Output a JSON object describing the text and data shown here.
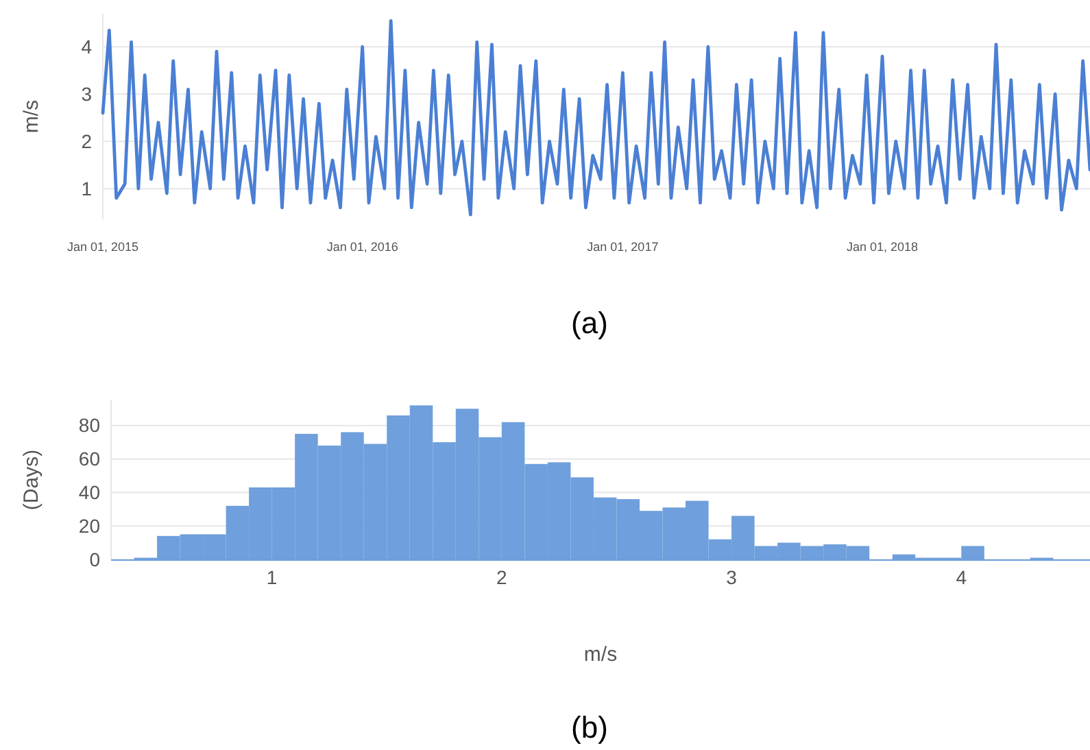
{
  "chart_data": [
    {
      "type": "line",
      "ylabel": "m/s",
      "annotations": [
        "(a)"
      ],
      "grid": "y",
      "xlim": [
        "2015-01-01",
        "2018-10-20"
      ],
      "xticks": [
        {
          "value": "2015-01-01",
          "label": "Jan 01, 2015"
        },
        {
          "value": "2016-01-01",
          "label": "Jan 01, 2016"
        },
        {
          "value": "2017-01-01",
          "label": "Jan 01, 2017"
        },
        {
          "value": "2018-01-01",
          "label": "Jan 01, 2018"
        }
      ],
      "ylim": [
        0.35,
        4.7
      ],
      "yticks": [
        1,
        2,
        3,
        4
      ],
      "x": [
        "2015-01-01",
        "2015-01-10",
        "2015-01-20",
        "2015-02-01",
        "2015-02-10",
        "2015-02-20",
        "2015-03-01",
        "2015-03-10",
        "2015-03-20",
        "2015-04-01",
        "2015-04-10",
        "2015-04-20",
        "2015-05-01",
        "2015-05-10",
        "2015-05-20",
        "2015-06-01",
        "2015-06-10",
        "2015-06-20",
        "2015-07-01",
        "2015-07-10",
        "2015-07-20",
        "2015-08-01",
        "2015-08-10",
        "2015-08-20",
        "2015-09-01",
        "2015-09-10",
        "2015-09-20",
        "2015-10-01",
        "2015-10-10",
        "2015-10-20",
        "2015-11-01",
        "2015-11-10",
        "2015-11-20",
        "2015-12-01",
        "2015-12-10",
        "2015-12-20",
        "2016-01-01",
        "2016-01-10",
        "2016-01-20",
        "2016-02-01",
        "2016-02-10",
        "2016-02-20",
        "2016-03-01",
        "2016-03-10",
        "2016-03-20",
        "2016-04-01",
        "2016-04-10",
        "2016-04-20",
        "2016-05-01",
        "2016-05-10",
        "2016-05-20",
        "2016-06-01",
        "2016-06-10",
        "2016-06-20",
        "2016-07-01",
        "2016-07-10",
        "2016-07-20",
        "2016-08-01",
        "2016-08-10",
        "2016-08-20",
        "2016-09-01",
        "2016-09-10",
        "2016-09-20",
        "2016-10-01",
        "2016-10-10",
        "2016-10-20",
        "2016-11-01",
        "2016-11-10",
        "2016-11-20",
        "2016-12-01",
        "2016-12-10",
        "2016-12-20",
        "2017-01-01",
        "2017-01-10",
        "2017-01-20",
        "2017-02-01",
        "2017-02-10",
        "2017-02-20",
        "2017-03-01",
        "2017-03-10",
        "2017-03-20",
        "2017-04-01",
        "2017-04-10",
        "2017-04-20",
        "2017-05-01",
        "2017-05-10",
        "2017-05-20",
        "2017-06-01",
        "2017-06-10",
        "2017-06-20",
        "2017-07-01",
        "2017-07-10",
        "2017-07-20",
        "2017-08-01",
        "2017-08-10",
        "2017-08-20",
        "2017-09-01",
        "2017-09-10",
        "2017-09-20",
        "2017-10-01",
        "2017-10-10",
        "2017-10-20",
        "2017-11-01",
        "2017-11-10",
        "2017-11-20",
        "2017-12-01",
        "2017-12-10",
        "2017-12-20",
        "2018-01-01",
        "2018-01-10",
        "2018-01-20",
        "2018-02-01",
        "2018-02-10",
        "2018-02-20",
        "2018-03-01",
        "2018-03-10",
        "2018-03-20",
        "2018-04-01",
        "2018-04-10",
        "2018-04-20",
        "2018-05-01",
        "2018-05-10",
        "2018-05-20",
        "2018-06-01",
        "2018-06-10",
        "2018-06-20",
        "2018-07-01",
        "2018-07-10",
        "2018-07-20",
        "2018-08-01",
        "2018-08-10",
        "2018-08-20",
        "2018-09-01",
        "2018-09-10",
        "2018-09-20",
        "2018-10-01",
        "2018-10-10",
        "2018-10-20"
      ],
      "series": [
        {
          "color": "#4a7fd4",
          "values": [
            2.6,
            4.35,
            0.8,
            1.1,
            4.1,
            1.0,
            3.4,
            1.2,
            2.4,
            0.9,
            3.7,
            1.3,
            3.1,
            0.7,
            2.2,
            1.0,
            3.9,
            1.2,
            3.45,
            0.8,
            1.9,
            0.7,
            3.4,
            1.4,
            3.5,
            0.6,
            3.4,
            1.0,
            2.9,
            0.7,
            2.8,
            0.8,
            1.6,
            0.6,
            3.1,
            1.2,
            4.0,
            0.7,
            2.1,
            1.0,
            4.55,
            0.8,
            3.5,
            0.6,
            2.4,
            1.1,
            3.5,
            0.9,
            3.4,
            1.3,
            2.0,
            0.45,
            4.1,
            1.2,
            4.05,
            0.8,
            2.2,
            1.0,
            3.6,
            1.3,
            3.7,
            0.7,
            2.0,
            1.1,
            3.1,
            0.8,
            2.9,
            0.6,
            1.7,
            1.2,
            3.2,
            0.8,
            3.45,
            0.7,
            1.9,
            0.8,
            3.45,
            1.1,
            4.1,
            0.8,
            2.3,
            1.0,
            3.3,
            0.7,
            4.0,
            1.2,
            1.8,
            0.8,
            3.2,
            1.1,
            3.3,
            0.7,
            2.0,
            1.0,
            3.75,
            0.9,
            4.3,
            0.7,
            1.8,
            0.6,
            4.3,
            1.0,
            3.1,
            0.8,
            1.7,
            1.1,
            3.4,
            0.7,
            3.8,
            0.9,
            2.0,
            1.0,
            3.5,
            0.8,
            3.5,
            1.1,
            1.9,
            0.7,
            3.3,
            1.2,
            3.2,
            0.8,
            2.1,
            1.0,
            4.05,
            0.9,
            3.3,
            0.7,
            1.8,
            1.1,
            3.2,
            0.8,
            3.0,
            0.55,
            1.6,
            1.0,
            3.7,
            1.4
          ]
        }
      ]
    },
    {
      "type": "histogram",
      "xlabel": "m/s",
      "ylabel": "(Days)",
      "annotations": [
        "(b)"
      ],
      "grid": "y",
      "color": "#6f9fdc",
      "xlim": [
        0.3,
        4.56
      ],
      "xticks": [
        1,
        2,
        3,
        4
      ],
      "ylim": [
        0,
        95
      ],
      "yticks": [
        0,
        20,
        40,
        60,
        80
      ],
      "bins": [
        0.3,
        0.4,
        0.5,
        0.6,
        0.7,
        0.8,
        0.9,
        1.0,
        1.1,
        1.2,
        1.3,
        1.4,
        1.5,
        1.6,
        1.7,
        1.8,
        1.9,
        2.0,
        2.1,
        2.2,
        2.3,
        2.4,
        2.5,
        2.6,
        2.7,
        2.8,
        2.9,
        3.0,
        3.1,
        3.2,
        3.3,
        3.4,
        3.5,
        3.6,
        3.7,
        3.8,
        3.9,
        4.0,
        4.1,
        4.2,
        4.3,
        4.4,
        4.5
      ],
      "values": [
        0,
        1,
        14,
        15,
        15,
        32,
        43,
        43,
        75,
        68,
        76,
        69,
        86,
        92,
        70,
        90,
        73,
        82,
        57,
        58,
        49,
        37,
        36,
        29,
        31,
        35,
        12,
        26,
        8,
        10,
        8,
        9,
        8,
        0,
        3,
        1,
        1,
        8,
        0,
        0,
        1,
        0
      ]
    }
  ]
}
